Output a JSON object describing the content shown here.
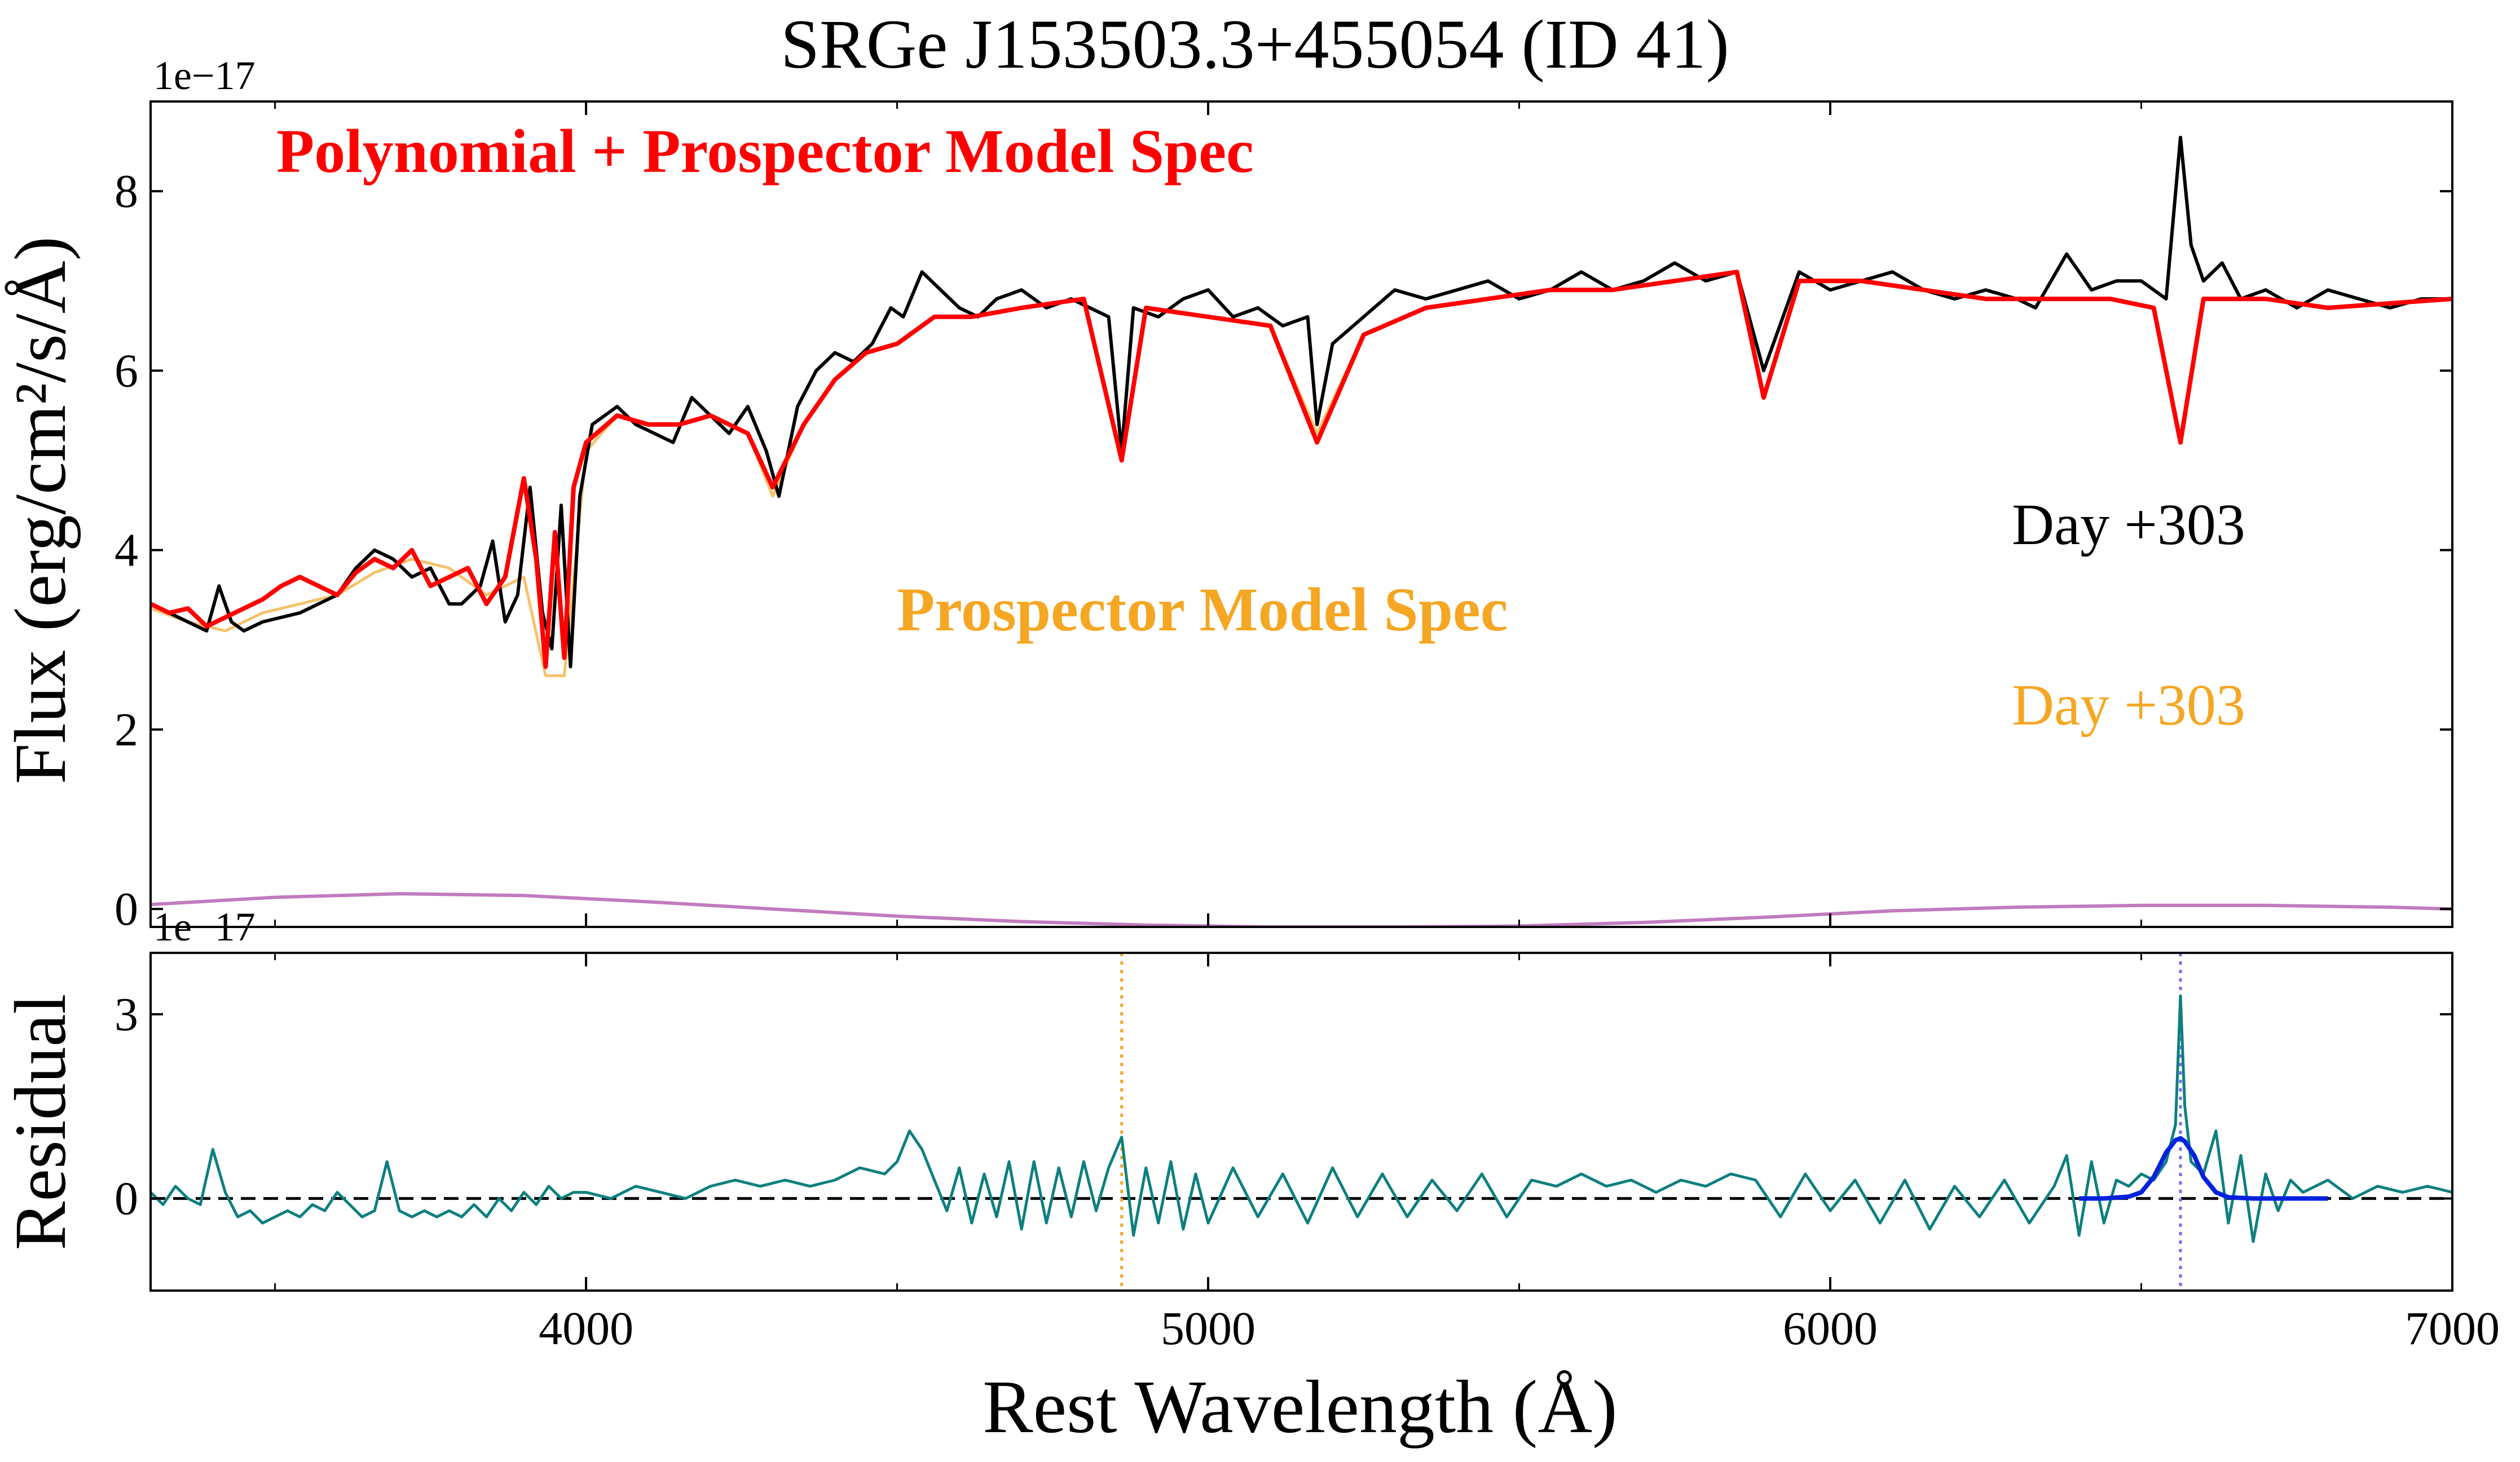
{
  "figure": {
    "title": "SRGe J153503.3+455054 (ID 41)",
    "colors": {
      "observed": "#000000",
      "poly_model": "#ff0000",
      "prospector_model": "#f5c26b",
      "polynomial": "#c27bbf",
      "residual": "#0e7f7f",
      "halpha_fit": "#0022dd",
      "hbeta_marker": "#f2a531",
      "halpha_marker": "#7070ee",
      "zero_line": "#000000"
    }
  },
  "chart_data": [
    {
      "panel": "top",
      "type": "line",
      "xlabel": "",
      "ylabel": "Flux (erg/cm²/s/Å)",
      "offset_text": "1e−17",
      "xlim": [
        3300,
        7000
      ],
      "ylim": [
        -0.2,
        9.0
      ],
      "yticks": [
        0,
        2,
        4,
        6,
        8
      ],
      "ytick_labels": [
        "0",
        "2",
        "4",
        "6",
        "8"
      ],
      "annotations": {
        "poly_label": "Polynomial + Prospector Model Spec",
        "prospector_label": "Prospector Model Spec",
        "day_black": "Day +303",
        "day_orange": "Day +303"
      },
      "series": [
        {
          "name": "Observed spectrum",
          "x": [
            3300,
            3330,
            3360,
            3390,
            3410,
            3430,
            3450,
            3480,
            3510,
            3540,
            3570,
            3600,
            3630,
            3660,
            3690,
            3720,
            3750,
            3780,
            3800,
            3830,
            3850,
            3870,
            3890,
            3910,
            3930,
            3945,
            3960,
            3975,
            3990,
            4010,
            4030,
            4050,
            4080,
            4110,
            4140,
            4170,
            4200,
            4230,
            4260,
            4290,
            4310,
            4340,
            4370,
            4400,
            4430,
            4460,
            4490,
            4510,
            4540,
            4570,
            4600,
            4630,
            4660,
            4700,
            4740,
            4780,
            4810,
            4840,
            4861,
            4880,
            4920,
            4960,
            5000,
            5040,
            5080,
            5120,
            5160,
            5175,
            5200,
            5250,
            5300,
            5350,
            5400,
            5450,
            5500,
            5550,
            5600,
            5650,
            5700,
            5750,
            5800,
            5850,
            5893,
            5950,
            6000,
            6050,
            6100,
            6150,
            6200,
            6250,
            6300,
            6330,
            6380,
            6420,
            6460,
            6500,
            6520,
            6540,
            6563,
            6580,
            6600,
            6630,
            6660,
            6700,
            6750,
            6800,
            6850,
            6900,
            6950,
            7000
          ],
          "y": [
            3.4,
            3.3,
            3.2,
            3.1,
            3.6,
            3.2,
            3.1,
            3.2,
            3.25,
            3.3,
            3.4,
            3.5,
            3.8,
            4.0,
            3.9,
            3.7,
            3.8,
            3.4,
            3.4,
            3.6,
            4.1,
            3.2,
            3.5,
            4.7,
            3.3,
            2.9,
            4.5,
            2.7,
            4.6,
            5.4,
            5.5,
            5.6,
            5.4,
            5.3,
            5.2,
            5.7,
            5.5,
            5.3,
            5.6,
            5.1,
            4.6,
            5.6,
            6.0,
            6.2,
            6.1,
            6.3,
            6.7,
            6.6,
            7.1,
            6.9,
            6.7,
            6.6,
            6.8,
            6.9,
            6.7,
            6.8,
            6.7,
            6.6,
            5.1,
            6.7,
            6.6,
            6.8,
            6.9,
            6.6,
            6.7,
            6.5,
            6.6,
            5.4,
            6.3,
            6.6,
            6.9,
            6.8,
            6.9,
            7.0,
            6.8,
            6.9,
            7.1,
            6.9,
            7.0,
            7.2,
            7.0,
            7.1,
            6.0,
            7.1,
            6.9,
            7.0,
            7.1,
            6.9,
            6.8,
            6.9,
            6.8,
            6.7,
            7.3,
            6.9,
            7.0,
            7.0,
            6.9,
            6.8,
            8.6,
            7.4,
            7.0,
            7.2,
            6.8,
            6.9,
            6.7,
            6.9,
            6.8,
            6.7,
            6.8,
            6.8
          ]
        },
        {
          "name": "Prospector Model Spec",
          "x": [
            3300,
            3360,
            3420,
            3480,
            3540,
            3600,
            3660,
            3720,
            3780,
            3840,
            3900,
            3935,
            3965,
            4000,
            4050,
            4100,
            4150,
            4200,
            4260,
            4300,
            4350,
            4400,
            4450,
            4500,
            4560,
            4620,
            4700,
            4800,
            4861,
            4900,
            5000,
            5100,
            5175,
            5250,
            5350,
            5450,
            5550,
            5650,
            5750,
            5850,
            5893,
            5950,
            6050,
            6150,
            6250,
            6350,
            6450,
            6520,
            6563,
            6600,
            6700,
            6800,
            6900,
            7000
          ],
          "y": [
            3.35,
            3.2,
            3.1,
            3.3,
            3.4,
            3.5,
            3.75,
            3.9,
            3.8,
            3.5,
            3.7,
            2.6,
            2.6,
            5.1,
            5.5,
            5.4,
            5.4,
            5.5,
            5.3,
            4.6,
            5.4,
            5.9,
            6.2,
            6.3,
            6.6,
            6.6,
            6.7,
            6.8,
            5.0,
            6.7,
            6.6,
            6.5,
            5.3,
            6.4,
            6.7,
            6.8,
            6.9,
            6.9,
            7.0,
            7.1,
            5.7,
            7.0,
            7.0,
            6.9,
            6.8,
            6.8,
            6.8,
            6.7,
            5.2,
            6.8,
            6.8,
            6.7,
            6.75,
            6.8
          ]
        },
        {
          "name": "Polynomial + Prospector Model Spec",
          "x": [
            3300,
            3330,
            3360,
            3390,
            3420,
            3450,
            3480,
            3510,
            3540,
            3570,
            3600,
            3630,
            3660,
            3690,
            3720,
            3750,
            3780,
            3810,
            3840,
            3870,
            3900,
            3920,
            3935,
            3950,
            3965,
            3980,
            4000,
            4050,
            4100,
            4150,
            4200,
            4260,
            4300,
            4350,
            4400,
            4450,
            4500,
            4560,
            4620,
            4700,
            4800,
            4861,
            4900,
            5000,
            5100,
            5175,
            5250,
            5350,
            5450,
            5550,
            5650,
            5750,
            5850,
            5893,
            5950,
            6050,
            6150,
            6250,
            6350,
            6450,
            6520,
            6563,
            6600,
            6700,
            6800,
            6900,
            7000
          ],
          "y": [
            3.4,
            3.3,
            3.35,
            3.15,
            3.25,
            3.35,
            3.45,
            3.6,
            3.7,
            3.6,
            3.5,
            3.75,
            3.9,
            3.8,
            4.0,
            3.6,
            3.7,
            3.8,
            3.4,
            3.7,
            4.8,
            3.9,
            2.7,
            4.2,
            2.8,
            4.7,
            5.2,
            5.5,
            5.4,
            5.4,
            5.5,
            5.3,
            4.7,
            5.4,
            5.9,
            6.2,
            6.3,
            6.6,
            6.6,
            6.7,
            6.8,
            5.0,
            6.7,
            6.6,
            6.5,
            5.2,
            6.4,
            6.7,
            6.8,
            6.9,
            6.9,
            7.0,
            7.1,
            5.7,
            7.0,
            7.0,
            6.9,
            6.8,
            6.8,
            6.8,
            6.7,
            5.2,
            6.8,
            6.8,
            6.7,
            6.75,
            6.8
          ]
        },
        {
          "name": "Polynomial",
          "x": [
            3300,
            3500,
            3700,
            3900,
            4100,
            4300,
            4500,
            4700,
            4900,
            5100,
            5300,
            5500,
            5700,
            5900,
            6100,
            6300,
            6500,
            6700,
            6900,
            7000
          ],
          "y": [
            0.05,
            0.13,
            0.17,
            0.15,
            0.08,
            0.0,
            -0.08,
            -0.14,
            -0.18,
            -0.2,
            -0.2,
            -0.19,
            -0.15,
            -0.09,
            -0.02,
            0.02,
            0.04,
            0.04,
            0.02,
            0.0
          ]
        }
      ]
    },
    {
      "panel": "bottom",
      "type": "line",
      "xlabel": "Rest Wavelength (Å)",
      "ylabel": "Residual",
      "offset_text": "1e−17",
      "xlim": [
        3300,
        7000
      ],
      "ylim": [
        -1.5,
        4.0
      ],
      "yticks": [
        0,
        3
      ],
      "ytick_labels": [
        "0",
        "3"
      ],
      "xticks": [
        4000,
        5000,
        6000,
        7000
      ],
      "xtick_labels": [
        "4000",
        "5000",
        "6000",
        "7000"
      ],
      "vlines": [
        {
          "name": "H-beta",
          "x": 4861
        },
        {
          "name": "H-alpha",
          "x": 6563
        }
      ],
      "series": [
        {
          "name": "Residual",
          "x": [
            3300,
            3320,
            3340,
            3360,
            3380,
            3400,
            3420,
            3440,
            3460,
            3480,
            3500,
            3520,
            3540,
            3560,
            3580,
            3600,
            3620,
            3640,
            3660,
            3680,
            3700,
            3720,
            3740,
            3760,
            3780,
            3800,
            3820,
            3840,
            3860,
            3880,
            3900,
            3920,
            3940,
            3960,
            3980,
            4000,
            4040,
            4080,
            4120,
            4160,
            4200,
            4240,
            4280,
            4320,
            4360,
            4400,
            4440,
            4480,
            4500,
            4520,
            4540,
            4560,
            4580,
            4600,
            4620,
            4640,
            4660,
            4680,
            4700,
            4720,
            4740,
            4760,
            4780,
            4800,
            4820,
            4840,
            4861,
            4880,
            4900,
            4920,
            4940,
            4960,
            4980,
            5000,
            5040,
            5080,
            5120,
            5160,
            5200,
            5240,
            5280,
            5320,
            5360,
            5400,
            5440,
            5480,
            5520,
            5560,
            5600,
            5640,
            5680,
            5720,
            5760,
            5800,
            5840,
            5880,
            5920,
            5960,
            6000,
            6040,
            6080,
            6120,
            6160,
            6200,
            6240,
            6280,
            6320,
            6360,
            6380,
            6400,
            6420,
            6440,
            6460,
            6480,
            6500,
            6520,
            6540,
            6555,
            6563,
            6570,
            6580,
            6600,
            6620,
            6640,
            6660,
            6680,
            6700,
            6720,
            6740,
            6760,
            6780,
            6800,
            6840,
            6880,
            6920,
            6960,
            7000
          ],
          "y": [
            0.1,
            -0.1,
            0.2,
            0.0,
            -0.1,
            0.8,
            0.1,
            -0.3,
            -0.2,
            -0.4,
            -0.3,
            -0.2,
            -0.3,
            -0.1,
            -0.2,
            0.1,
            -0.1,
            -0.3,
            -0.2,
            0.6,
            -0.2,
            -0.3,
            -0.2,
            -0.3,
            -0.2,
            -0.3,
            -0.1,
            -0.3,
            0.0,
            -0.2,
            0.1,
            -0.1,
            0.2,
            0.0,
            0.1,
            0.1,
            0.0,
            0.2,
            0.1,
            0.0,
            0.2,
            0.3,
            0.2,
            0.3,
            0.2,
            0.3,
            0.5,
            0.4,
            0.6,
            1.1,
            0.8,
            0.3,
            -0.2,
            0.5,
            -0.4,
            0.4,
            -0.3,
            0.6,
            -0.5,
            0.6,
            -0.4,
            0.5,
            -0.3,
            0.6,
            -0.2,
            0.5,
            1.0,
            -0.6,
            0.5,
            -0.4,
            0.6,
            -0.5,
            0.4,
            -0.4,
            0.5,
            -0.3,
            0.4,
            -0.4,
            0.5,
            -0.3,
            0.4,
            -0.3,
            0.3,
            -0.2,
            0.4,
            -0.3,
            0.3,
            0.2,
            0.4,
            0.2,
            0.3,
            0.1,
            0.3,
            0.2,
            0.4,
            0.3,
            -0.3,
            0.4,
            -0.2,
            0.3,
            -0.4,
            0.3,
            -0.5,
            0.2,
            -0.3,
            0.3,
            -0.4,
            0.2,
            0.7,
            -0.6,
            0.6,
            -0.4,
            0.3,
            0.2,
            0.4,
            0.3,
            0.6,
            1.2,
            3.3,
            1.5,
            0.6,
            0.4,
            1.1,
            -0.4,
            0.7,
            -0.7,
            0.4,
            -0.2,
            0.3,
            0.1,
            0.2,
            0.3,
            0.0,
            0.2,
            0.1,
            0.2,
            0.1
          ]
        },
        {
          "name": "H-alpha Gaussian fit",
          "x": [
            6400,
            6440,
            6480,
            6500,
            6520,
            6540,
            6555,
            6563,
            6570,
            6585,
            6600,
            6620,
            6640,
            6680,
            6720,
            6760,
            6800
          ],
          "y": [
            0.0,
            0.0,
            0.03,
            0.1,
            0.35,
            0.75,
            0.95,
            0.98,
            0.93,
            0.7,
            0.35,
            0.1,
            0.02,
            0.0,
            0.0,
            0.0,
            0.0
          ]
        }
      ]
    }
  ]
}
